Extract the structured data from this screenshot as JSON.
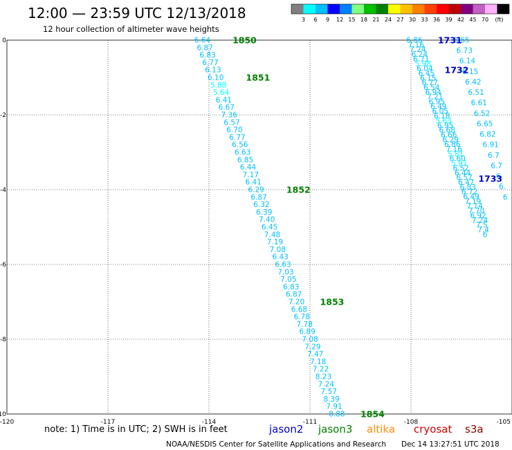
{
  "header": {
    "title": "12:00 — 23:59 UTC 12/13/2018",
    "subtitle": "12 hour collection of altimeter wave heights"
  },
  "legend": {
    "colors": [
      "#808080",
      "#00ffff",
      "#00c0ff",
      "#0000ff",
      "#0080ff",
      "#80ff80",
      "#00c000",
      "#008000",
      "#ffff00",
      "#ffc000",
      "#ff8000",
      "#ff4000",
      "#ff0000",
      "#c00000",
      "#800080",
      "#c060c0",
      "#ffb0ff",
      "#000000"
    ],
    "labels": [
      "3",
      "6",
      "9",
      "12",
      "15",
      "18",
      "21",
      "24",
      "27",
      "30",
      "33",
      "36",
      "39",
      "42",
      "45",
      "70"
    ],
    "unit": "(ft)"
  },
  "chart_data": {
    "type": "scatter",
    "xlim": [
      -120,
      -105
    ],
    "ylim": [
      -10,
      0
    ],
    "x_ticks": [
      "-120",
      "-117",
      "-114",
      "-111",
      "-108",
      "-105"
    ],
    "y_ticks": [
      "0",
      "-2",
      "-4",
      "-6",
      "-8",
      "-10"
    ],
    "grid": true,
    "series": [
      {
        "name": "jason3",
        "start": [
          -114.2,
          0.0
        ],
        "end": [
          -110.2,
          -10.0
        ],
        "values": [
          "6.64",
          "6.87",
          "6.83",
          "6.77",
          "6.13",
          "6.10",
          "5.88",
          "5.64",
          "6.41",
          "6.67",
          "7.36",
          "6.57",
          "6.70",
          "6.77",
          "6.56",
          "6.63",
          "6.85",
          "6.44",
          "7.17",
          "6.41",
          "6.29",
          "6.87",
          "6.32",
          "6.39",
          "7.40",
          "6.45",
          "7.48",
          "7.19",
          "7.08",
          "6.43",
          "6.63",
          "7.03",
          "7.05",
          "6.83",
          "6.87",
          "7.20",
          "6.68",
          "6.78",
          "7.78",
          "6.89",
          "7.08",
          "7.29",
          "7.47",
          "7.18",
          "7.22",
          "8.23",
          "7.24",
          "7.57",
          "8.39",
          "7.91",
          "8.88"
        ]
      },
      {
        "name": "jason2",
        "start": [
          -107.9,
          0.0
        ],
        "end": [
          -105.8,
          -5.2
        ],
        "values": [
          "6.86",
          "7.16",
          "7.24",
          "6.24",
          "6.71",
          "5.98",
          "6.04",
          "6.45",
          "6.15",
          "6.77",
          "6.54",
          "6.94",
          "7.21",
          "6.95",
          "6.49",
          "6.05",
          "6.18",
          "5.63",
          "6.95",
          "6.68",
          "6.66",
          "6.29",
          "6.86",
          "7.16",
          "5.81",
          "6.60",
          "5.91",
          "6.52",
          "6.44",
          "6.57",
          "6.47",
          "6.83",
          "6.72",
          "6.49",
          "7.19",
          "7.14",
          "7.70",
          "6.92",
          "7.24",
          "7.5",
          "7.4",
          "6"
        ]
      },
      {
        "name": "jason2",
        "start": [
          -106.5,
          0.0
        ],
        "end": [
          -105.2,
          -4.2
        ],
        "values": [
          "6.65",
          "6.73",
          "6.14",
          "6.15",
          "6.42",
          "6.51",
          "6.61",
          "6.52",
          "6.65",
          "6.82",
          "6.91",
          "6.7",
          "6.7",
          "6.",
          "6.",
          "6"
        ]
      }
    ],
    "pass_labels": [
      {
        "text": "1850",
        "x": -113.3,
        "y": 0.0,
        "sat": "jason3"
      },
      {
        "text": "1851",
        "x": -112.9,
        "y": -1.0,
        "sat": "jason3"
      },
      {
        "text": "1852",
        "x": -111.7,
        "y": -4.0,
        "sat": "jason3"
      },
      {
        "text": "1853",
        "x": -110.7,
        "y": -7.0,
        "sat": "jason3"
      },
      {
        "text": "1854",
        "x": -109.5,
        "y": -10.0,
        "sat": "jason3"
      },
      {
        "text": "1731",
        "x": -107.2,
        "y": 0.0,
        "sat": "jason2"
      },
      {
        "text": "1732",
        "x": -107.0,
        "y": -0.8,
        "sat": "jason2"
      },
      {
        "text": "1733",
        "x": -106.0,
        "y": -3.7,
        "sat": "jason2"
      }
    ]
  },
  "note": {
    "text": "note:  1) Time is in UTC;  2) SWH is in feet",
    "satellites": [
      {
        "label": "jason2",
        "color": "#0000cc"
      },
      {
        "label": "jason3",
        "color": "#008000"
      },
      {
        "label": "altika",
        "color": "#ff8c00"
      },
      {
        "label": "cryosat",
        "color": "#cc0000"
      },
      {
        "label": "s3a",
        "color": "#8b0000"
      }
    ]
  },
  "footer": {
    "center": "NOAA/NESDIS Center for Satellite Applications and Research",
    "timestamp": "Dec 14 13:27:51 UTC 2018"
  }
}
